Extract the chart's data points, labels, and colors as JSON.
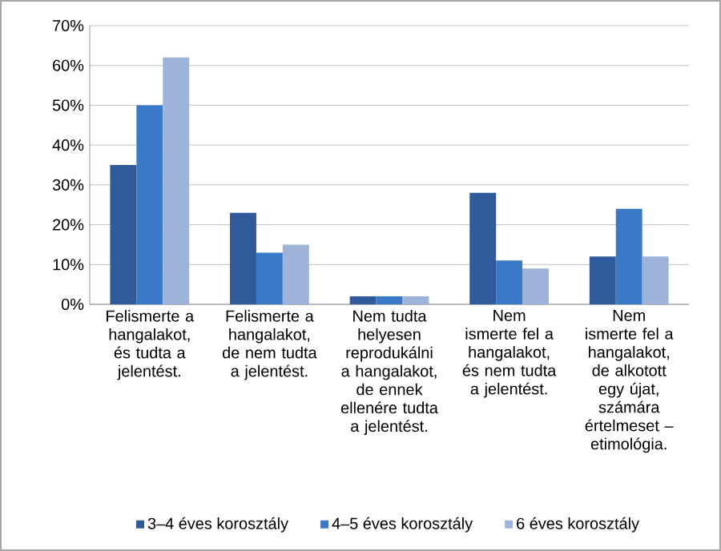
{
  "chart_data": {
    "type": "bar",
    "categories": [
      "Felismerte a hangalakot, és tudta a jelentést.",
      "Felismerte a hangalakot, de nem tudta a jelentést.",
      "Nem tudta helyesen reprodukálni a hangalakot, de ennek ellenére tudta a jelentést.",
      "Nem ismerte fel a hangalakot, és nem tudta a jelentést.",
      "Nem ismerte fel a hangalakot, de alkotott egy újat, számára értelmeset – etimológia."
    ],
    "series": [
      {
        "name": "3–4 éves korosztály",
        "color": "#2f5b9a",
        "values": [
          35,
          23,
          2,
          28,
          12
        ]
      },
      {
        "name": "4–5 éves korosztály",
        "color": "#3a78c8",
        "values": [
          50,
          13,
          2,
          11,
          24
        ]
      },
      {
        "name": "6 éves korosztály",
        "color": "#9db3d9",
        "values": [
          62,
          15,
          2,
          9,
          12
        ]
      }
    ],
    "ylim": [
      0,
      70
    ],
    "yticks": [
      {
        "value": 0,
        "label": "0%"
      },
      {
        "value": 10,
        "label": "10%"
      },
      {
        "value": 20,
        "label": "20%"
      },
      {
        "value": 30,
        "label": "30%"
      },
      {
        "value": 40,
        "label": "40%"
      },
      {
        "value": 50,
        "label": "50%"
      },
      {
        "value": 60,
        "label": "60%"
      },
      {
        "value": 70,
        "label": "70%"
      }
    ],
    "grid": "y",
    "legend": "bottom"
  }
}
